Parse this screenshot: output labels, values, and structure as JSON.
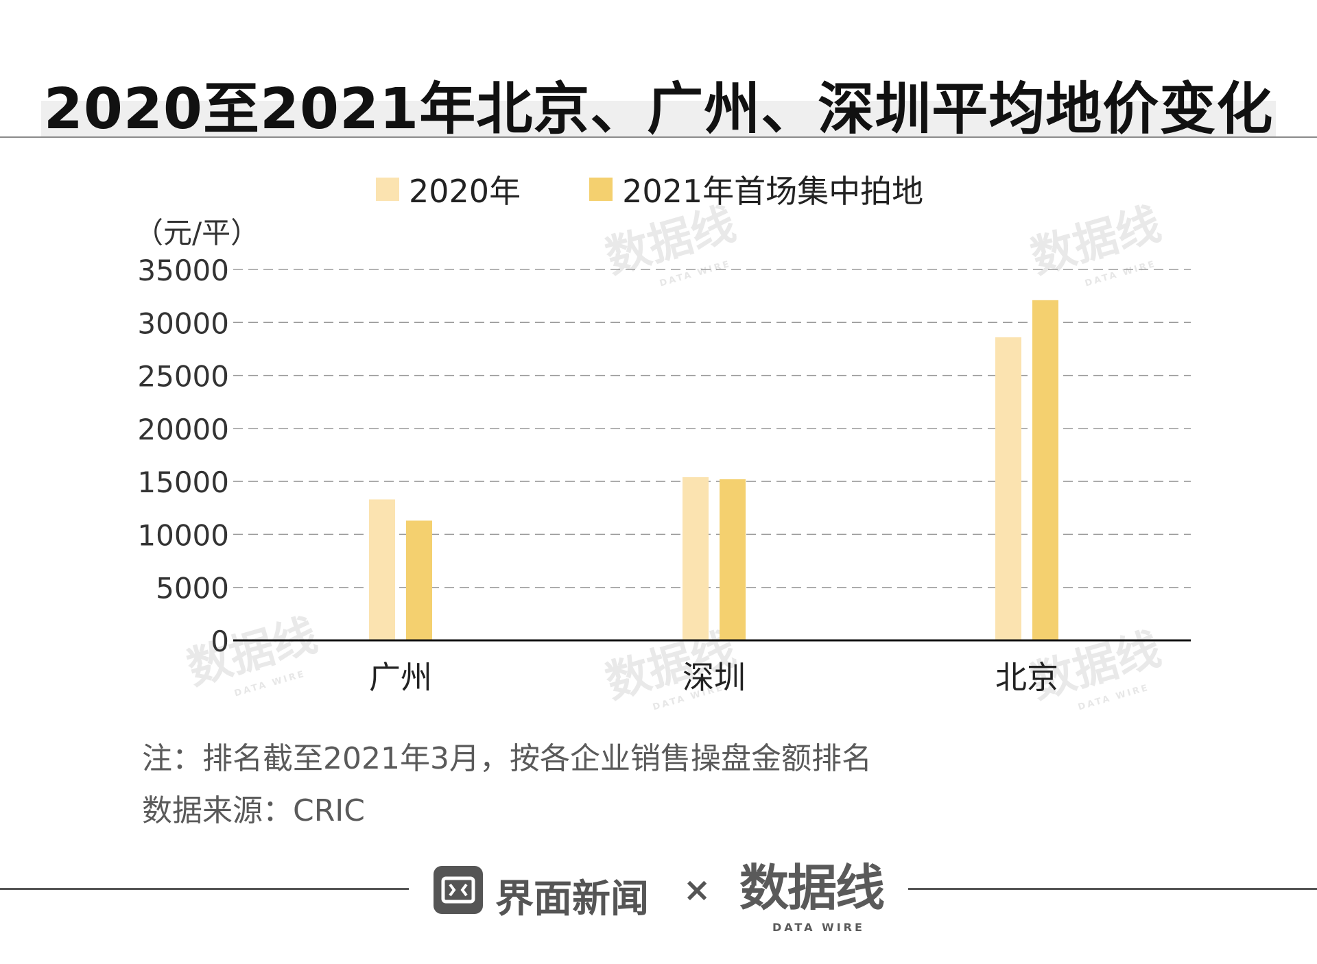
{
  "title": "2020至2021年北京、广州、深圳平均地价变化",
  "legend": {
    "items": [
      {
        "label": "2020年",
        "color": "#fbe3b0"
      },
      {
        "label": "2021年首场集中拍地",
        "color": "#f4d06f"
      }
    ]
  },
  "chart_data": {
    "type": "bar",
    "unit_label": "（元/平）",
    "categories": [
      "广州",
      "深圳",
      "北京"
    ],
    "series": [
      {
        "name": "2020年",
        "values": [
          13300,
          15400,
          28600
        ],
        "color": "#fbe3b0"
      },
      {
        "name": "2021年首场集中拍地",
        "values": [
          11300,
          15200,
          32100
        ],
        "color": "#f4d06f"
      }
    ],
    "ylim": [
      0,
      35000
    ],
    "yticks": [
      0,
      5000,
      10000,
      15000,
      20000,
      25000,
      30000,
      35000
    ],
    "grid": true,
    "legend_position": "top"
  },
  "notes": {
    "note": "注：排名截至2021年3月，按各企业销售操盘金额排名",
    "source": "数据来源：CRIC"
  },
  "watermark": {
    "text": "数据线",
    "sub": "DATA WIRE"
  },
  "footer": {
    "brand": "界面新闻",
    "separator": "×",
    "partner": "数据线",
    "partner_sub": "DATA WIRE"
  }
}
